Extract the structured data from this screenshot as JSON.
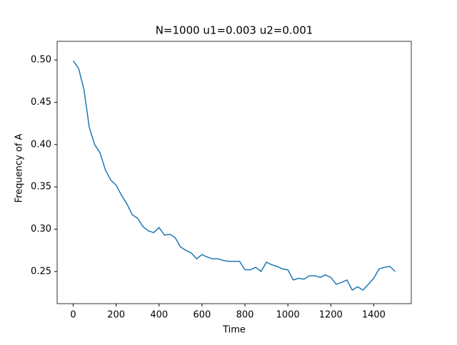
{
  "chart_data": {
    "type": "line",
    "title": "N=1000 u1=0.003 u2=0.001",
    "x_label": "Time",
    "y_label": "Frequency of A",
    "x": [
      0,
      25,
      50,
      75,
      100,
      125,
      150,
      175,
      200,
      225,
      250,
      275,
      300,
      325,
      350,
      375,
      400,
      425,
      450,
      475,
      500,
      525,
      550,
      575,
      600,
      625,
      650,
      675,
      700,
      725,
      750,
      775,
      800,
      825,
      850,
      875,
      900,
      925,
      950,
      975,
      1000,
      1025,
      1050,
      1075,
      1100,
      1125,
      1150,
      1175,
      1200,
      1225,
      1250,
      1275,
      1300,
      1325,
      1350,
      1375,
      1400,
      1425,
      1450,
      1475,
      1500
    ],
    "values": [
      0.499,
      0.49,
      0.465,
      0.42,
      0.4,
      0.39,
      0.37,
      0.358,
      0.352,
      0.34,
      0.33,
      0.317,
      0.313,
      0.303,
      0.298,
      0.296,
      0.302,
      0.293,
      0.294,
      0.29,
      0.279,
      0.275,
      0.272,
      0.265,
      0.27,
      0.267,
      0.265,
      0.265,
      0.263,
      0.262,
      0.262,
      0.262,
      0.252,
      0.252,
      0.255,
      0.25,
      0.261,
      0.258,
      0.256,
      0.253,
      0.252,
      0.24,
      0.242,
      0.241,
      0.245,
      0.245,
      0.243,
      0.246,
      0.243,
      0.235,
      0.237,
      0.24,
      0.228,
      0.232,
      0.228,
      0.235,
      0.242,
      0.253,
      0.255,
      0.256,
      0.25
    ],
    "color": "#1f77b4",
    "xlim": [
      -75,
      1575
    ],
    "ylim": [
      0.212,
      0.522
    ],
    "xticks": [
      0,
      200,
      400,
      600,
      800,
      1000,
      1200,
      1400
    ],
    "yticks": [
      0.25,
      {
        "value": 0.3,
        "label": "0.30"
      },
      0.35,
      {
        "value": 0.4,
        "label": "0.40"
      },
      0.45,
      {
        "value": 0.5,
        "label": "0.50"
      }
    ]
  }
}
